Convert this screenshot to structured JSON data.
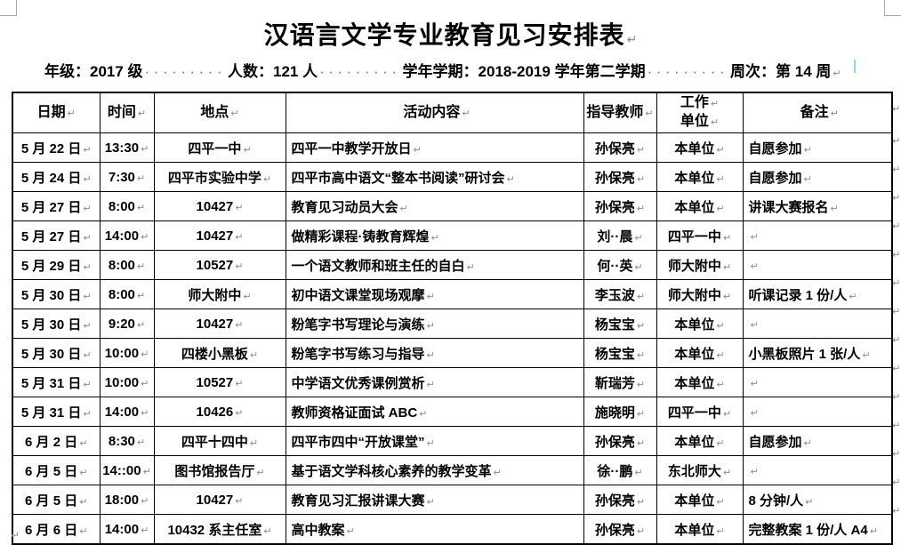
{
  "page": {
    "title": "汉语言文学专业教育见习安排表",
    "info": {
      "items": [
        {
          "label": "年级：",
          "value": "2017 级"
        },
        {
          "label": "人数：",
          "value": "121 人"
        },
        {
          "label": "学年学期：",
          "value": "2018-2019 学年第二学期"
        },
        {
          "label": "周次：",
          "value": "第 14 周"
        }
      ],
      "dot_leader": "·········"
    }
  },
  "table": {
    "headers": [
      {
        "key": "date",
        "label": "日期"
      },
      {
        "key": "time",
        "label": "时间"
      },
      {
        "key": "location",
        "label": "地点"
      },
      {
        "key": "activity",
        "label": "活动内容"
      },
      {
        "key": "teacher",
        "label": "指导教师"
      },
      {
        "key": "work-unit",
        "label": "工作",
        "label2": "单位"
      },
      {
        "key": "remarks",
        "label": "备注"
      }
    ],
    "rows": [
      [
        "5 月 22 日",
        "13:30",
        "四平一中",
        "四平一中教学开放日",
        "孙保亮",
        "本单位",
        "自愿参加"
      ],
      [
        "5 月 24 日",
        "7:30",
        "四平市实验中学",
        "四平市高中语文“整本书阅读”研讨会",
        "孙保亮",
        "本单位",
        "自愿参加"
      ],
      [
        "5 月 27 日",
        "8:00",
        "10427",
        "教育见习动员大会",
        "孙保亮",
        "本单位",
        "讲课大赛报名"
      ],
      [
        "5 月 27 日",
        "14:00",
        "10427",
        "做精彩课程·铸教育辉煌",
        "刘··晨",
        "四平一中",
        ""
      ],
      [
        "5 月 29 日",
        "8:00",
        "10527",
        "一个语文教师和班主任的自白",
        "何··英",
        "师大附中",
        ""
      ],
      [
        "5 月 30 日",
        "8:00",
        "师大附中",
        "初中语文课堂现场观摩",
        "李玉波",
        "师大附中",
        "听课记录 1 份/人"
      ],
      [
        "5 月 30 日",
        "9:20",
        "10427",
        "粉笔字书写理论与演练",
        "杨宝宝",
        "本单位",
        ""
      ],
      [
        "5 月 30 日",
        "10:00",
        "四楼小黑板",
        "粉笔字书写练习与指导",
        "杨宝宝",
        "本单位",
        "小黑板照片 1 张/人"
      ],
      [
        "5 月 31 日",
        "10:00",
        "10527",
        "中学语文优秀课例赏析",
        "靳瑞芳",
        "本单位",
        ""
      ],
      [
        "5 月 31 日",
        "14:00",
        "10426",
        "教师资格证面试 ABC",
        "施晓明",
        "四平一中",
        ""
      ],
      [
        "6 月 2 日",
        "8:30",
        "四平十四中",
        "四平市四中“开放课堂”",
        "孙保亮",
        "本单位",
        "自愿参加"
      ],
      [
        "6 月 5 日",
        "14::00",
        "图书馆报告厅",
        "基于语文学科核心素养的教学变革",
        "徐··鹏",
        "东北师大",
        ""
      ],
      [
        "6 月 5 日",
        "18:00",
        "10427",
        "教育见习汇报讲课大赛",
        "孙保亮",
        "本单位",
        "8 分钟/人"
      ],
      [
        "6 月 6 日",
        "14:00",
        "10432 系主任室",
        "高中教案",
        "孙保亮",
        "本单位",
        "完整教案 1 份/人 A4"
      ]
    ]
  },
  "marks": {
    "pilcrow": "↵"
  }
}
